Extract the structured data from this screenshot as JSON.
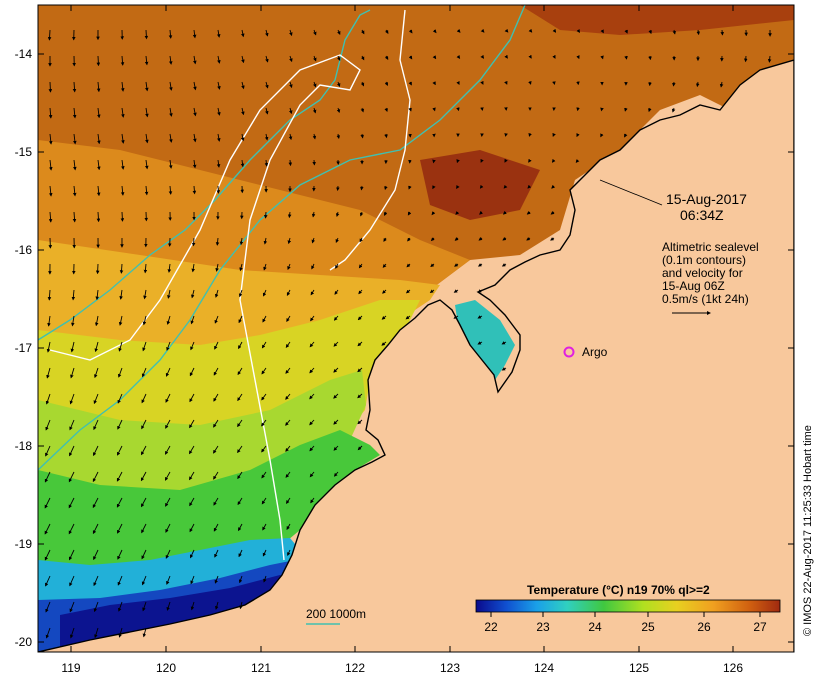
{
  "map": {
    "lon_ticks": [
      "119",
      "120",
      "121",
      "122",
      "123",
      "124",
      "125",
      "126"
    ],
    "lat_ticks": [
      "-14",
      "-15",
      "-16",
      "-17",
      "-18",
      "-19",
      "-20"
    ],
    "lon_range": [
      118.65,
      126.65
    ],
    "lat_range": [
      -20.1,
      -13.6
    ]
  },
  "annotations": {
    "date": "15-Aug-2017",
    "time": "06:34Z",
    "altimetry_lines": [
      "Altimetric sealevel",
      "(0.1m contours)",
      "and velocity for",
      "15-Aug 06Z",
      "0.5m/s (1kt 24h)"
    ],
    "argo_label": "Argo",
    "depth_legend": "200  1000m"
  },
  "colorbar": {
    "title": "Temperature (°C) n19 70% ql>=2",
    "ticks": [
      "22",
      "23",
      "24",
      "25",
      "26",
      "27"
    ],
    "range": [
      21.6,
      27.5
    ],
    "stops": [
      "#0a0a8c",
      "#1050d0",
      "#1aa0e8",
      "#30d0c0",
      "#40c840",
      "#b0e020",
      "#e8d020",
      "#f0a020",
      "#d06010",
      "#a02a10"
    ]
  },
  "credit": "© IMOS 22-Aug-2017 11:25:33 Hobart time",
  "colors": {
    "land": "#f8c89c",
    "coast": "#000000",
    "bathy_200": "#40c0b0",
    "bathy_1000": "#ffffff",
    "argo_marker": "#e020e0"
  }
}
